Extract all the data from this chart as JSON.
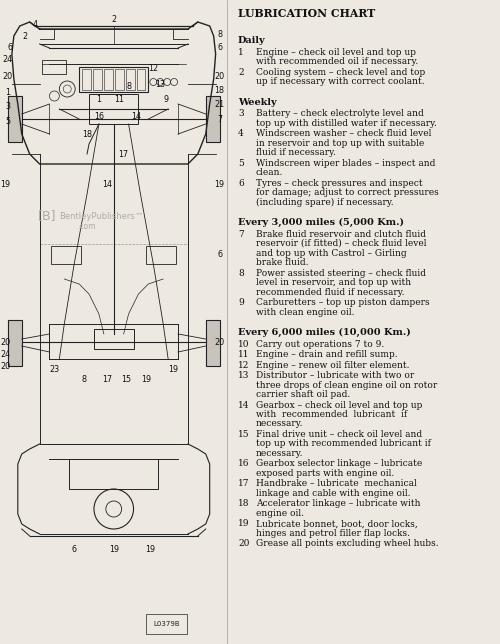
{
  "title": "LUBRICATION CHART",
  "bg": "#ede8e0",
  "tc": "#111111",
  "lc": "#222222",
  "sections": [
    {
      "header": "Daily",
      "bold": true,
      "items": [
        {
          "num": "1",
          "lines": [
            "Engine – check oil level and top up",
            "with recommended oil if necessary."
          ]
        },
        {
          "num": "2",
          "lines": [
            "Cooling system – check level and top",
            "up if necessary with correct coolant."
          ]
        }
      ]
    },
    {
      "header": "Weekly",
      "bold": true,
      "items": [
        {
          "num": "3",
          "lines": [
            "Battery – check electrolyte level and",
            "top up with distilled water if necessary."
          ]
        },
        {
          "num": "4",
          "lines": [
            "Windscreen washer – check fluid level",
            "in reservoir and top up with suitable",
            "fluid if necessary."
          ]
        },
        {
          "num": "5",
          "lines": [
            "Windscreen wiper blades – inspect and",
            "clean."
          ]
        },
        {
          "num": "6",
          "lines": [
            "Tyres – check pressures and inspect",
            "for damage; adjust to correct pressures",
            "(including spare) if necessary."
          ]
        }
      ]
    },
    {
      "header": "Every 3,000 miles (5,000 Km.)",
      "bold": true,
      "items": [
        {
          "num": "7",
          "lines": [
            "Brake fluid reservoir and clutch fluid",
            "reservoir (if fitted) – check fluid level",
            "and top up with Castrol – Girling",
            "brake fluid."
          ]
        },
        {
          "num": "8",
          "lines": [
            "Power assisted steering – check fluid",
            "level in reservoir, and top up with",
            "recommended fluid if necessary."
          ]
        },
        {
          "num": "9",
          "lines": [
            "Carburetters – top up piston dampers",
            "with clean engine oil."
          ]
        }
      ]
    },
    {
      "header": "Every 6,000 miles (10,000 Km.)",
      "bold": true,
      "items": [
        {
          "num": "10",
          "lines": [
            "Carry out operations 7 to 9."
          ]
        },
        {
          "num": "11",
          "lines": [
            "Engine – drain and refill sump."
          ]
        },
        {
          "num": "12",
          "lines": [
            "Engine – renew oil filter element."
          ]
        },
        {
          "num": "13",
          "lines": [
            "Distributor – lubricate with two or",
            "three drops of clean engine oil on rotor",
            "carrier shaft oil pad."
          ]
        },
        {
          "num": "14",
          "lines": [
            "Gearbox – check oil level and top up",
            "with  recommended  lubricant  if",
            "necessary."
          ]
        },
        {
          "num": "15",
          "lines": [
            "Final drive unit – check oil level and",
            "top up with recommended lubricant if",
            "necessary."
          ]
        },
        {
          "num": "16",
          "lines": [
            "Gearbox selector linkage – lubricate",
            "exposed parts with engine oil."
          ]
        },
        {
          "num": "17",
          "lines": [
            "Handbrake – lubricate  mechanical",
            "linkage and cable with engine oil."
          ]
        },
        {
          "num": "18",
          "lines": [
            "Accelerator linkage – lubricate with",
            "engine oil."
          ]
        },
        {
          "num": "19",
          "lines": [
            "Lubricate bonnet, boot, door locks,",
            "hinges and petrol filler flap locks."
          ]
        },
        {
          "num": "20",
          "lines": [
            "Grease all points excluding wheel hubs."
          ]
        }
      ]
    }
  ],
  "figsize": [
    5.0,
    6.44
  ],
  "dpi": 100
}
